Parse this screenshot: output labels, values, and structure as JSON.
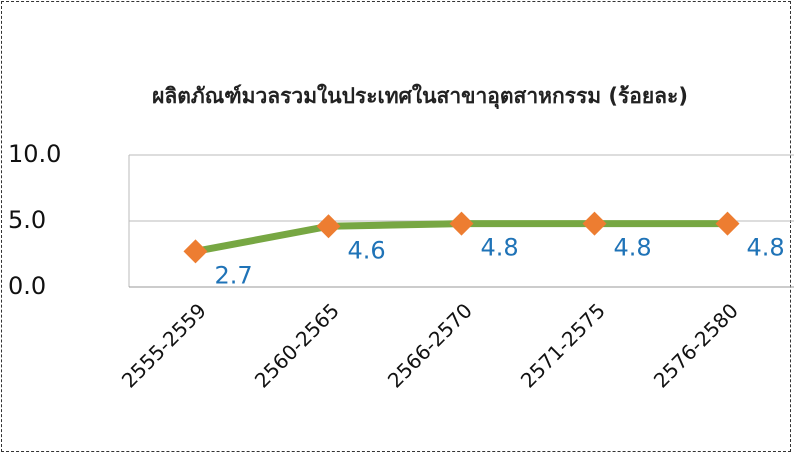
{
  "chart_data": {
    "type": "line",
    "title": "ผลิตภัณฑ์มวลรวมในประเทศในสาขาอุตสาหกรรม (ร้อยละ)",
    "categories": [
      "2555-2559",
      "2560-2565",
      "2566-2570",
      "2571-2575",
      "2576-2580"
    ],
    "series": [
      {
        "name": "ผลิตภัณฑ์มวลรวมในประเทศในสาขาอุตสาหกรรม",
        "color": "#77a743",
        "marker_color": "#ed7d31",
        "label_color": "#1f73b7",
        "values": [
          2.7,
          4.6,
          4.8,
          4.8,
          4.8
        ]
      }
    ],
    "ylim": [
      0,
      10
    ],
    "yticks": [
      {
        "value": 0,
        "label": "0.0"
      },
      {
        "value": 5,
        "label": "5.0"
      },
      {
        "value": 10,
        "label": "10.0"
      }
    ],
    "grid": true
  }
}
